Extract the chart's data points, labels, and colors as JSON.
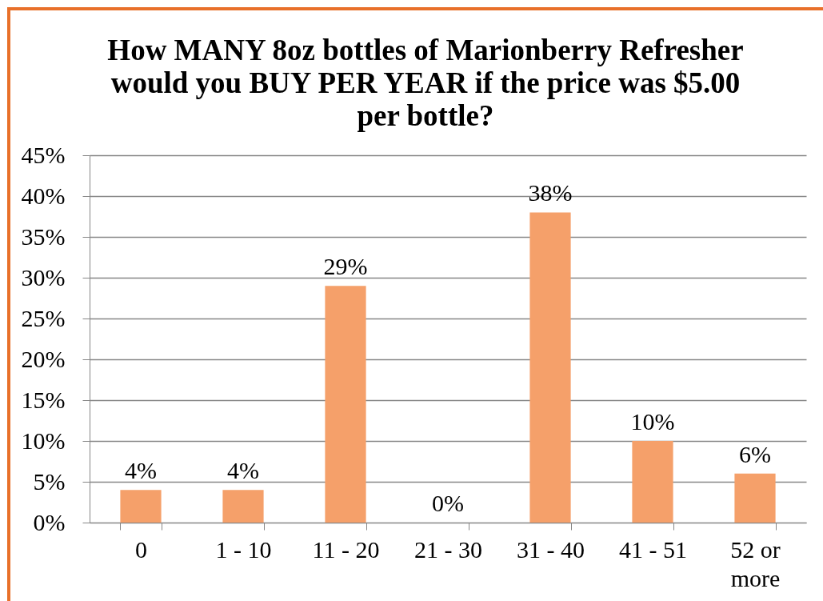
{
  "chart_data": {
    "type": "bar",
    "title": "How MANY 8oz bottles of Marionberry Refresher would you BUY PER YEAR if the price was $5.00 per bottle?",
    "categories": [
      "0",
      "1 - 10",
      "11 - 20",
      "21 - 30",
      "31 - 40",
      "41 - 51",
      "52 or more"
    ],
    "values": [
      4,
      4,
      29,
      0,
      38,
      10,
      6
    ],
    "value_labels": [
      "4%",
      "4%",
      "29%",
      "0%",
      "38%",
      "10%",
      "6%"
    ],
    "color": "#f5a06a",
    "ylim": [
      0,
      45
    ],
    "yticks": [
      {
        "value": 0,
        "label": "0%"
      },
      {
        "value": 5,
        "label": "5%"
      },
      {
        "value": 10,
        "label": "10%"
      },
      {
        "value": 15,
        "label": "15%"
      },
      {
        "value": 20,
        "label": "20%"
      },
      {
        "value": 25,
        "label": "25%"
      },
      {
        "value": 30,
        "label": "30%"
      },
      {
        "value": 35,
        "label": "35%"
      },
      {
        "value": 40,
        "label": "40%"
      },
      {
        "value": 45,
        "label": "45%"
      }
    ],
    "grid": "y"
  }
}
